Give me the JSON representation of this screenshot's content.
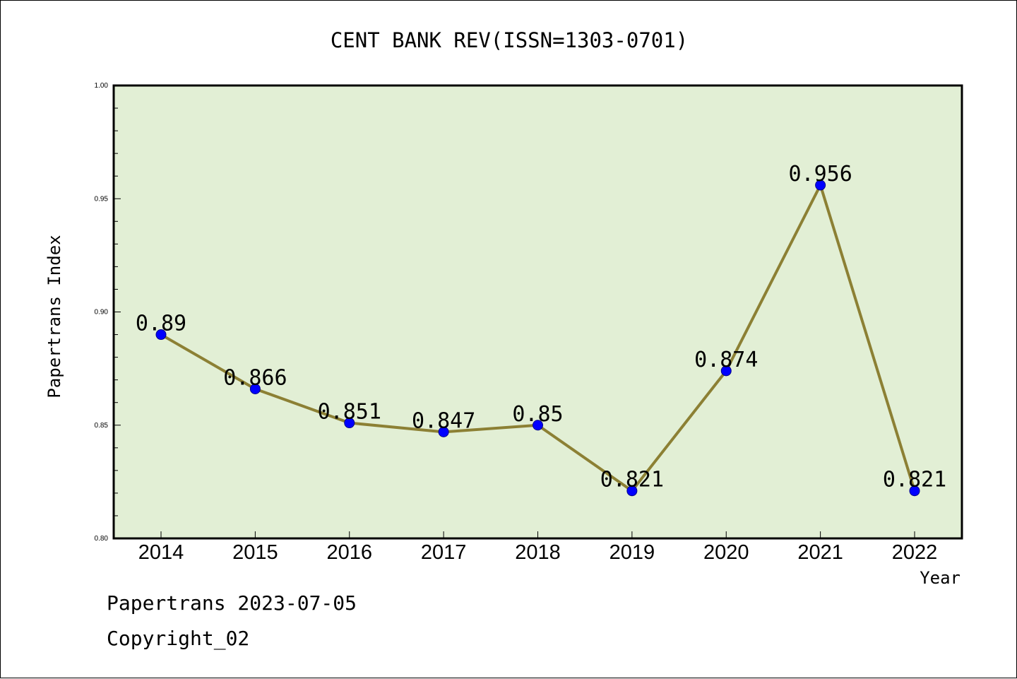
{
  "chart_data": {
    "type": "line",
    "title": "CENT BANK REV(ISSN=1303-0701)",
    "xlabel": "Year",
    "ylabel": "Papertrans Index",
    "categories": [
      "2014",
      "2015",
      "2016",
      "2017",
      "2018",
      "2019",
      "2020",
      "2021",
      "2022"
    ],
    "series": [
      {
        "values": [
          0.89,
          0.866,
          0.851,
          0.847,
          0.85,
          0.821,
          0.874,
          0.956,
          0.821
        ],
        "data_labels": [
          "0.89",
          "0.866",
          "0.851",
          "0.847",
          "0.85",
          "0.821",
          "0.874",
          "0.956",
          "0.821"
        ]
      }
    ],
    "ylim": [
      0.8,
      1.0
    ],
    "yticks": [
      "0.80",
      "0.85",
      "0.90",
      "0.95",
      "1.00"
    ],
    "grid": false,
    "colors": {
      "plot_background": "#e2efd5",
      "line": "#8c8034",
      "marker": "#0000ff"
    }
  },
  "footer": {
    "date_line": "Papertrans 2023-07-05",
    "copyright": "Copyright_02"
  }
}
